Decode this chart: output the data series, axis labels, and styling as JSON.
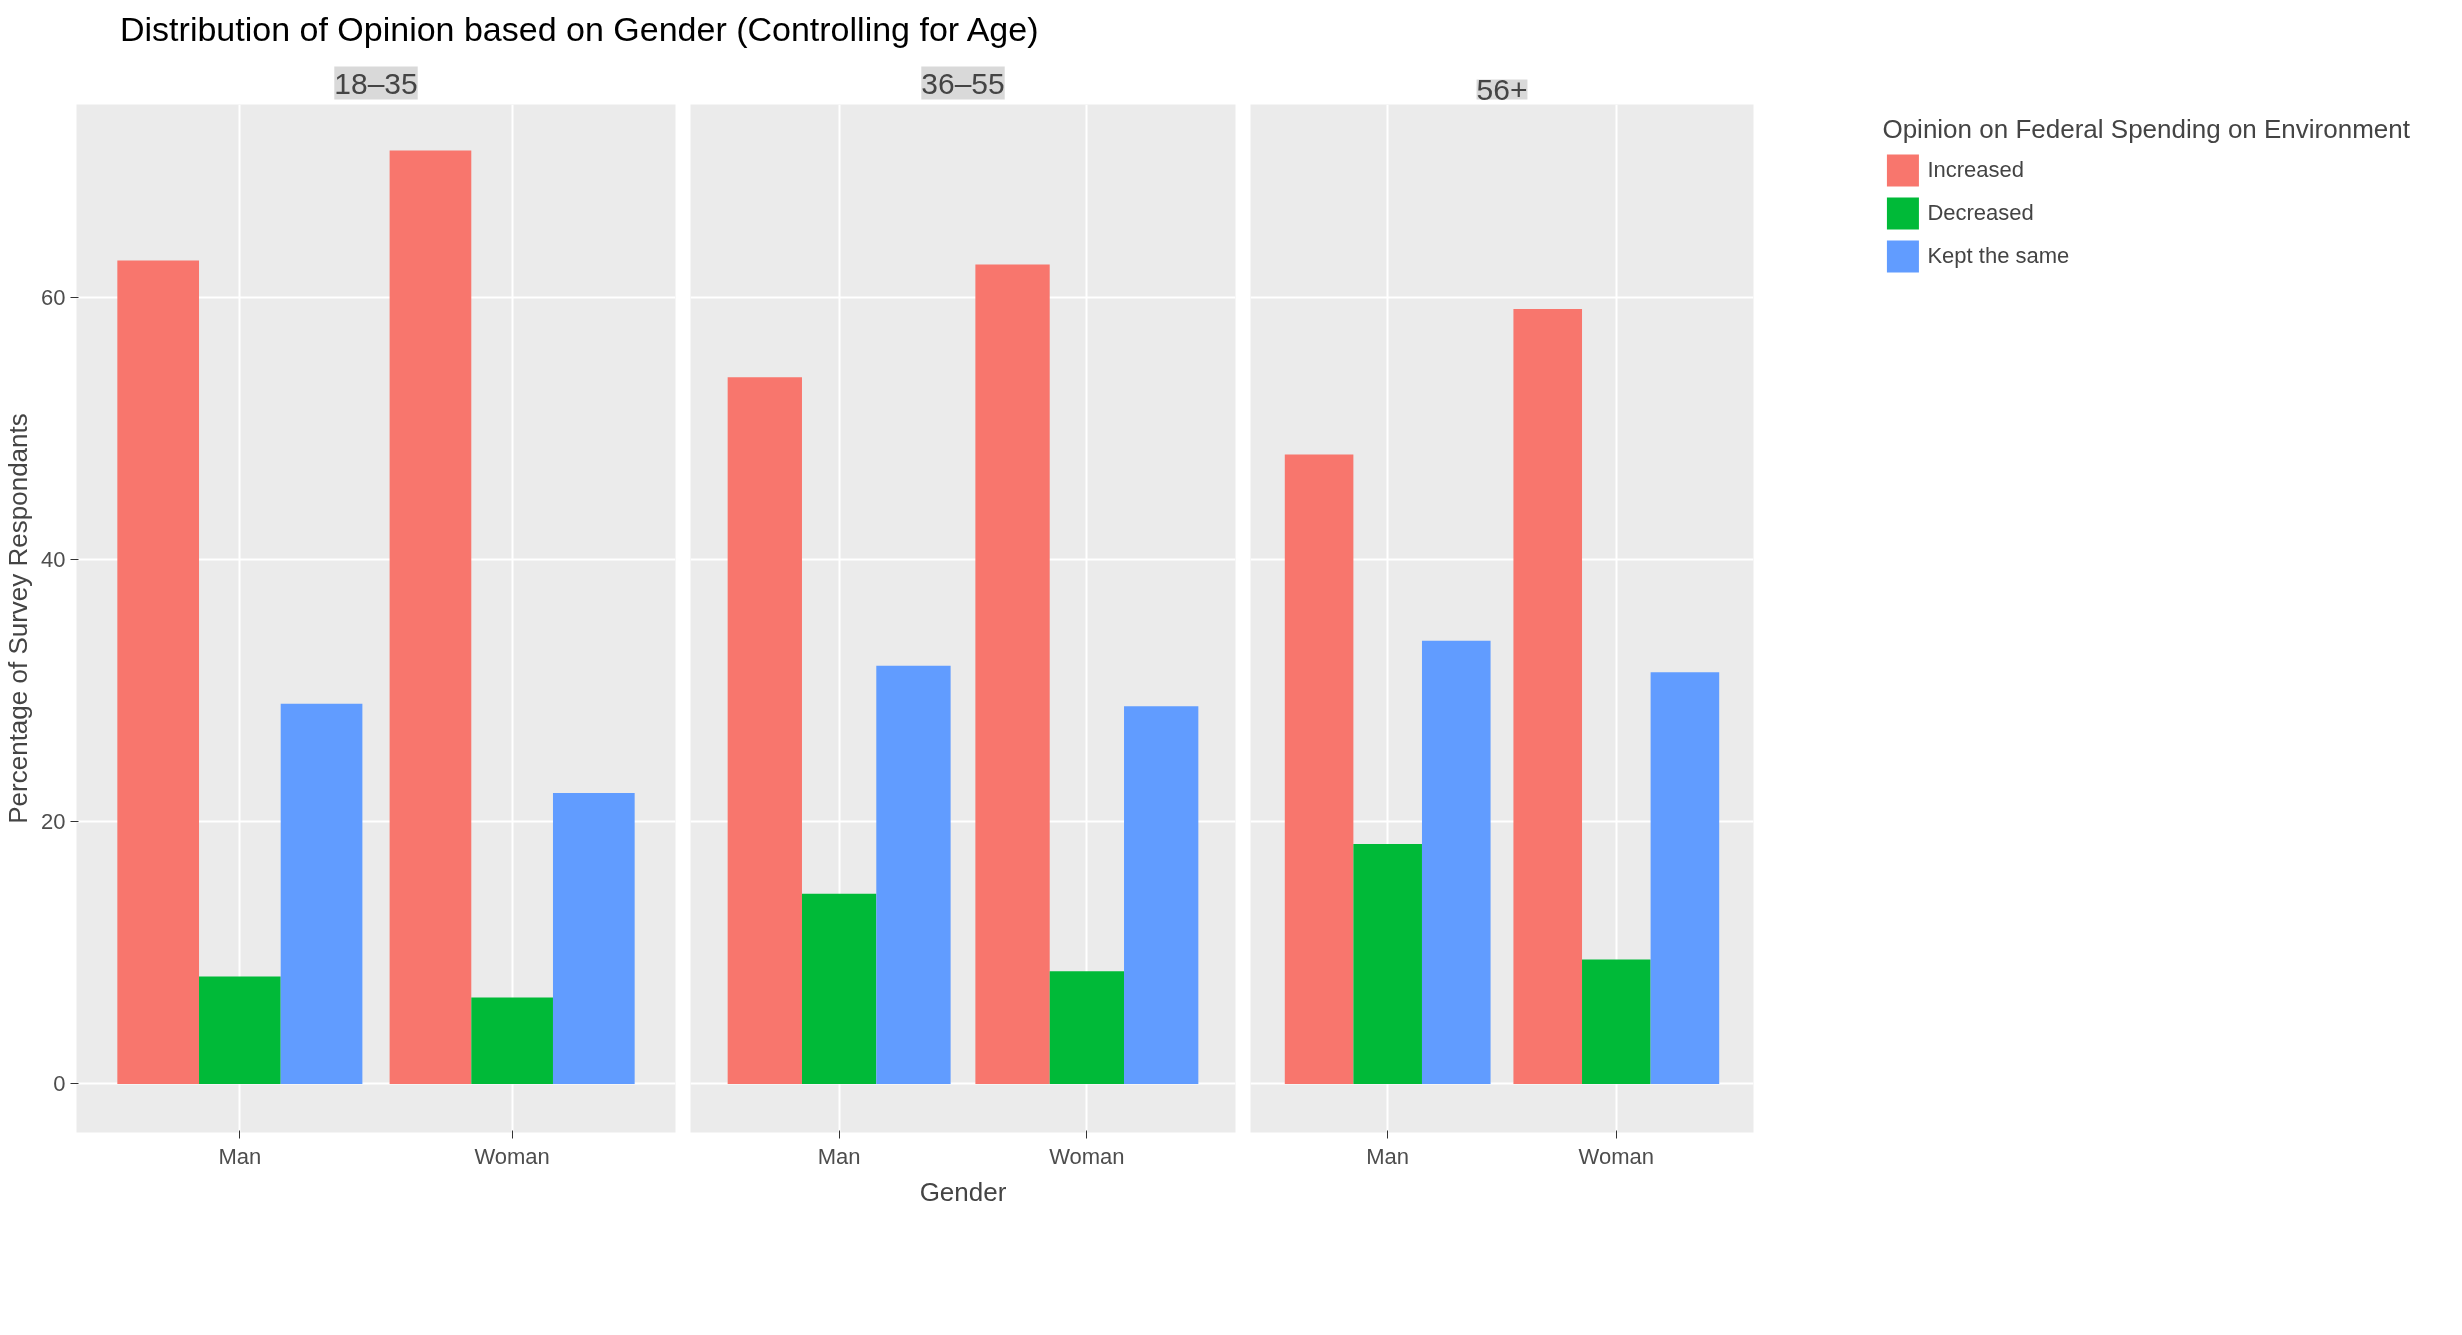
{
  "chart_data": [
    {
      "type": "bar",
      "title": "18–35",
      "subtitle": "Distribution of Opinion based on Gender (Controlling for Age)",
      "ylabel": "Percentage of Survey Respondants",
      "categories": [
        "Man",
        "Woman"
      ],
      "series": [
        {
          "color": "#f8766d",
          "values": [
            62.8,
            71.2
          ]
        },
        {
          "color": "#00ba38",
          "values": [
            8.2,
            6.6
          ]
        },
        {
          "color": "#619cff",
          "values": [
            29.0,
            22.2
          ]
        }
      ],
      "ylim": [
        -3.7,
        74.7
      ],
      "yticks": [
        0,
        20,
        40,
        60
      ],
      "grid": true
    },
    {
      "type": "bar",
      "title": "36–55",
      "xlabel": "Gender",
      "categories": [
        "Man",
        "Woman"
      ],
      "series": [
        {
          "color": "#f8766d",
          "values": [
            53.9,
            62.5
          ]
        },
        {
          "color": "#00ba38",
          "values": [
            14.5,
            8.6
          ]
        },
        {
          "color": "#619cff",
          "values": [
            31.9,
            28.8
          ]
        }
      ],
      "ylim": [
        -3.7,
        74.7
      ],
      "yticks": [
        0,
        20,
        40,
        60
      ],
      "grid": true,
      "tick_labels": "x"
    },
    {
      "type": "bar",
      "title": "56+",
      "categories": [
        "Man",
        "Woman"
      ],
      "series": [
        {
          "name": "Increased",
          "color": "#f8766d",
          "values": [
            48.0,
            59.1
          ]
        },
        {
          "name": "Decreased",
          "color": "#00ba38",
          "values": [
            18.3,
            9.5
          ]
        },
        {
          "name": "Kept the same",
          "color": "#619cff",
          "values": [
            33.8,
            31.4
          ]
        }
      ],
      "ylim": [
        -3.7,
        74.7
      ],
      "yticks": [
        0,
        20,
        40,
        60
      ],
      "grid": true,
      "tick_labels": "x",
      "legend": "right",
      "legend_title": "Opinion on Federal Spending on Environment"
    }
  ]
}
